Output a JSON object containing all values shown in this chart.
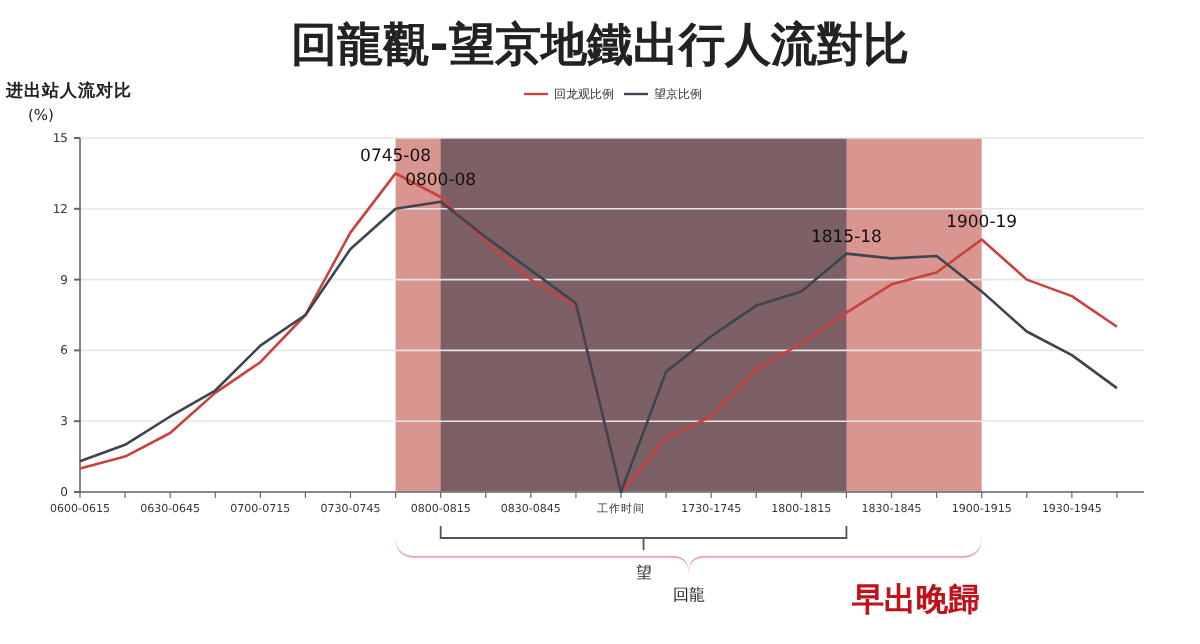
{
  "chart_data": {
    "type": "line",
    "title": "回龍觀-望京地鐵出行人流對比",
    "ylabel": "进出站人流对比 (%)",
    "categories": [
      "0600-0615",
      null,
      "0630-0645",
      null,
      "0700-0715",
      null,
      "0730-0745",
      null,
      "0800-0815",
      null,
      "0830-0845",
      null,
      "工作时间",
      null,
      "1730-1745",
      null,
      "1800-1815",
      null,
      "1830-1845",
      null,
      "1900-1915",
      null,
      "1930-1945",
      null
    ],
    "series": [
      {
        "name": "回龙观比例",
        "color": "#c8423e",
        "values": [
          1.0,
          1.5,
          2.5,
          4.2,
          5.5,
          7.5,
          11.0,
          13.5,
          12.5,
          10.6,
          9.0,
          7.9,
          0,
          2.3,
          3.2,
          5.2,
          6.3,
          7.6,
          8.8,
          9.3,
          10.7,
          9.0,
          8.3,
          7.0
        ]
      },
      {
        "name": "望京比例",
        "color": "#3e4450",
        "values": [
          1.3,
          2.0,
          3.2,
          4.3,
          6.2,
          7.5,
          10.3,
          12.0,
          12.3,
          10.8,
          9.4,
          8.0,
          0,
          5.1,
          6.6,
          7.9,
          8.5,
          10.1,
          9.9,
          10.0,
          8.5,
          6.8,
          5.8,
          4.4
        ]
      }
    ],
    "ylim": [
      0,
      15
    ],
    "yticks": [
      0,
      3,
      6,
      9,
      12,
      15
    ],
    "grid": "y",
    "legend": "top",
    "annotations": [
      {
        "text": "0745-08",
        "y": 13.5
      },
      {
        "text": "0800-08",
        "y": 12.5
      },
      {
        "text": "1815-18",
        "y": 10.1
      },
      {
        "text": "1900-19",
        "y": 10.7
      },
      "望",
      "回龍",
      "早出晚歸"
    ]
  }
}
